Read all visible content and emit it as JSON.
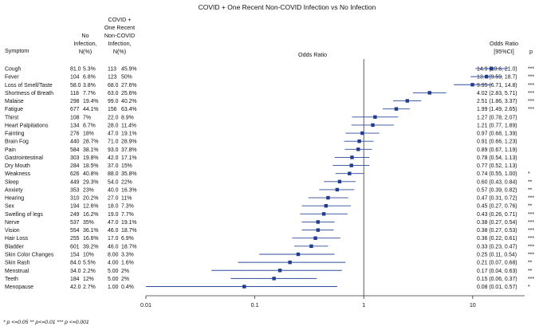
{
  "chart_data": {
    "type": "scatter",
    "subtype": "forest-plot",
    "title": "COVID + One Recent Non-COVID Infection vs No Infection",
    "xlabel": "Odds Ratio",
    "x_scale": "log",
    "xlim": [
      0.01,
      30
    ],
    "x_ticks": [
      0.01,
      0.1,
      1,
      10
    ],
    "x_tick_labels": [
      "0.01",
      "0.1",
      "1",
      "10"
    ],
    "reference_line": 1,
    "headers": {
      "symptom": "Symptom",
      "no_infection": [
        "No",
        "Infection,",
        "N(%)"
      ],
      "covid": [
        "COVID +",
        "One Recent",
        "Non-COVID",
        "Infection,",
        "N(%)"
      ],
      "odds_ratio": [
        "Odds Ratio",
        "[95%CI]"
      ],
      "p": "p"
    },
    "footnote": "* p <=0.05 ** p<=0.01 *** p <=0.001",
    "rows": [
      {
        "symptom": "Cough",
        "no_n": "81.0",
        "no_pct": "5.3%",
        "cv_n": "113",
        "cv_pct": "45.9%",
        "or_text": "14.9 (10.6, 21.0)",
        "or": 14.9,
        "lo": 10.6,
        "hi": 21.0,
        "sig": "***"
      },
      {
        "symptom": "Fever",
        "no_n": "104",
        "no_pct": "6.8%",
        "cv_n": "123",
        "cv_pct": "50%",
        "or_text": "13.4 (9.59, 18.7)",
        "or": 13.4,
        "lo": 9.59,
        "hi": 18.7,
        "sig": "***"
      },
      {
        "symptom": "Loss of Smell/Taste",
        "no_n": "58.0",
        "no_pct": "3.8%",
        "cv_n": "68.0",
        "cv_pct": "27.6%",
        "or_text": "9.95 (6.71, 14.8)",
        "or": 9.95,
        "lo": 6.71,
        "hi": 14.8,
        "sig": "***"
      },
      {
        "symptom": "Shortness of Breath",
        "no_n": "118",
        "no_pct": "7.7%",
        "cv_n": "63.0",
        "cv_pct": "25.6%",
        "or_text": "4.02 (2.83, 5.71)",
        "or": 4.02,
        "lo": 2.83,
        "hi": 5.71,
        "sig": "***"
      },
      {
        "symptom": "Malaise",
        "no_n": "298",
        "no_pct": "19.4%",
        "cv_n": "99.0",
        "cv_pct": "40.2%",
        "or_text": "2.51 (1.86, 3.37)",
        "or": 2.51,
        "lo": 1.86,
        "hi": 3.37,
        "sig": "***"
      },
      {
        "symptom": "Fatigue",
        "no_n": "677",
        "no_pct": "44.1%",
        "cv_n": "156",
        "cv_pct": "63.4%",
        "or_text": "1.99 (1.49, 2.65)",
        "or": 1.99,
        "lo": 1.49,
        "hi": 2.65,
        "sig": "***"
      },
      {
        "symptom": "Thirst",
        "no_n": "108",
        "no_pct": "7%",
        "cv_n": "22.0",
        "cv_pct": "8.9%",
        "or_text": "1.27 (0.78, 2.07)",
        "or": 1.27,
        "lo": 0.78,
        "hi": 2.07,
        "sig": ""
      },
      {
        "symptom": "Heart Palpitations",
        "no_n": "134",
        "no_pct": "8.7%",
        "cv_n": "28.0",
        "cv_pct": "11.4%",
        "or_text": "1.21 (0.77, 1.89)",
        "or": 1.21,
        "lo": 0.77,
        "hi": 1.89,
        "sig": ""
      },
      {
        "symptom": "Fainting",
        "no_n": "276",
        "no_pct": "18%",
        "cv_n": "47.0",
        "cv_pct": "19.1%",
        "or_text": "0.97 (0.68, 1.39)",
        "or": 0.97,
        "lo": 0.68,
        "hi": 1.39,
        "sig": ""
      },
      {
        "symptom": "Brain Fog",
        "no_n": "440",
        "no_pct": "28.7%",
        "cv_n": "71.0",
        "cv_pct": "28.9%",
        "or_text": "0.91 (0.66, 1.23)",
        "or": 0.91,
        "lo": 0.66,
        "hi": 1.23,
        "sig": ""
      },
      {
        "symptom": "Pain",
        "no_n": "584",
        "no_pct": "38.1%",
        "cv_n": "93.0",
        "cv_pct": "37.8%",
        "or_text": "0.89 (0.67, 1.19)",
        "or": 0.89,
        "lo": 0.67,
        "hi": 1.19,
        "sig": ""
      },
      {
        "symptom": "Gastrointestinal",
        "no_n": "303",
        "no_pct": "19.8%",
        "cv_n": "42.0",
        "cv_pct": "17.1%",
        "or_text": "0.78 (0.54, 1.13)",
        "or": 0.78,
        "lo": 0.54,
        "hi": 1.13,
        "sig": ""
      },
      {
        "symptom": "Dry Mouth",
        "no_n": "284",
        "no_pct": "18.5%",
        "cv_n": "37.0",
        "cv_pct": "15%",
        "or_text": "0.77 (0.52, 1.13)",
        "or": 0.77,
        "lo": 0.52,
        "hi": 1.13,
        "sig": ""
      },
      {
        "symptom": "Weakness",
        "no_n": "626",
        "no_pct": "40.8%",
        "cv_n": "88.0",
        "cv_pct": "35.8%",
        "or_text": "0.74 (0.55, 1.00)",
        "or": 0.74,
        "lo": 0.55,
        "hi": 1.0,
        "sig": "*"
      },
      {
        "symptom": "Sleep",
        "no_n": "449",
        "no_pct": "29.3%",
        "cv_n": "54.0",
        "cv_pct": "22%",
        "or_text": "0.60 (0.43, 0.84)",
        "or": 0.6,
        "lo": 0.43,
        "hi": 0.84,
        "sig": "**"
      },
      {
        "symptom": "Anxiety",
        "no_n": "353",
        "no_pct": "23%",
        "cv_n": "40.0",
        "cv_pct": "16.3%",
        "or_text": "0.57 (0.39, 0.82)",
        "or": 0.57,
        "lo": 0.39,
        "hi": 0.82,
        "sig": "**"
      },
      {
        "symptom": "Hearing",
        "no_n": "310",
        "no_pct": "20.2%",
        "cv_n": "27.0",
        "cv_pct": "11%",
        "or_text": "0.47 (0.31, 0.72)",
        "or": 0.47,
        "lo": 0.31,
        "hi": 0.72,
        "sig": "***"
      },
      {
        "symptom": "Sex",
        "no_n": "194",
        "no_pct": "12.6%",
        "cv_n": "18.0",
        "cv_pct": "7.3%",
        "or_text": "0.45 (0.27, 0.76)",
        "or": 0.45,
        "lo": 0.27,
        "hi": 0.76,
        "sig": "**"
      },
      {
        "symptom": "Swelling of legs",
        "no_n": "249",
        "no_pct": "16.2%",
        "cv_n": "19.0",
        "cv_pct": "7.7%",
        "or_text": "0.43 (0.26, 0.71)",
        "or": 0.43,
        "lo": 0.26,
        "hi": 0.71,
        "sig": "***"
      },
      {
        "symptom": "Nerve",
        "no_n": "537",
        "no_pct": "35%",
        "cv_n": "47.0",
        "cv_pct": "19.1%",
        "or_text": "0.38 (0.27, 0.54)",
        "or": 0.38,
        "lo": 0.27,
        "hi": 0.54,
        "sig": "***"
      },
      {
        "symptom": "Vision",
        "no_n": "554",
        "no_pct": "36.1%",
        "cv_n": "46.0",
        "cv_pct": "18.7%",
        "or_text": "0.38 (0.27, 0.53)",
        "or": 0.38,
        "lo": 0.27,
        "hi": 0.53,
        "sig": "***"
      },
      {
        "symptom": "Hair Loss",
        "no_n": "255",
        "no_pct": "16.6%",
        "cv_n": "17.0",
        "cv_pct": "6.9%",
        "or_text": "0.36 (0.22, 0.61)",
        "or": 0.36,
        "lo": 0.22,
        "hi": 0.61,
        "sig": "***"
      },
      {
        "symptom": "Bladder",
        "no_n": "601",
        "no_pct": "39.2%",
        "cv_n": "46.0",
        "cv_pct": "18.7%",
        "or_text": "0.33 (0.23, 0.47)",
        "or": 0.33,
        "lo": 0.23,
        "hi": 0.47,
        "sig": "***"
      },
      {
        "symptom": "Skin Color Changes",
        "no_n": "154",
        "no_pct": "10%",
        "cv_n": "8.00",
        "cv_pct": "3.3%",
        "or_text": "0.25 (0.11, 0.54)",
        "or": 0.25,
        "lo": 0.11,
        "hi": 0.54,
        "sig": "***"
      },
      {
        "symptom": "Skin Rash",
        "no_n": "84.0",
        "no_pct": "5.5%",
        "cv_n": "4.00",
        "cv_pct": "1.6%",
        "or_text": "0.21 (0.07, 0.68)",
        "or": 0.21,
        "lo": 0.07,
        "hi": 0.68,
        "sig": "**"
      },
      {
        "symptom": "Menstrual",
        "no_n": "34.0",
        "no_pct": "2.2%",
        "cv_n": "5.00",
        "cv_pct": "2%",
        "or_text": "0.17 (0.04, 0.63)",
        "or": 0.17,
        "lo": 0.04,
        "hi": 0.63,
        "sig": "**"
      },
      {
        "symptom": "Teeth",
        "no_n": "184",
        "no_pct": "12%",
        "cv_n": "5.00",
        "cv_pct": "2%",
        "or_text": "0.15 (0.06, 0.37)",
        "or": 0.15,
        "lo": 0.06,
        "hi": 0.37,
        "sig": "***"
      },
      {
        "symptom": "Menopause",
        "no_n": "42.0",
        "no_pct": "2.7%",
        "cv_n": "1.00",
        "cv_pct": "0.4%",
        "or_text": "0.08 (0.01, 0.57)",
        "or": 0.08,
        "lo": 0.01,
        "hi": 0.57,
        "sig": "*"
      }
    ],
    "colors": {
      "marker": "#1f3d8c",
      "ci_line": "#2c4a9c",
      "axis": "#333333"
    }
  }
}
